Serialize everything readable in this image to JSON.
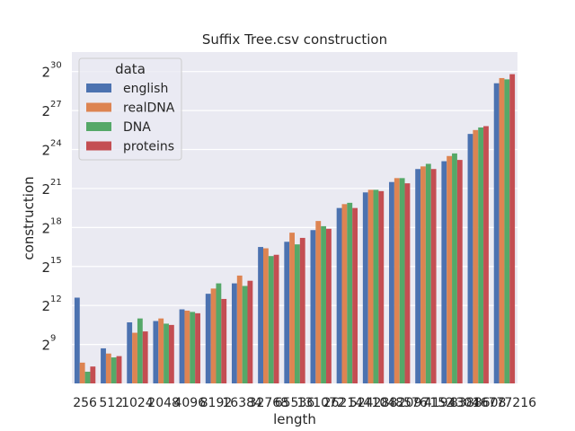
{
  "chart_data": {
    "type": "bar",
    "title": "Suffix Tree.csv construction",
    "xlabel": "length",
    "ylabel": "construction",
    "y_scale": "log2",
    "ylim_log2": [
      6.0,
      31.5
    ],
    "y_ticks": [
      {
        "base": "2",
        "exp": "9",
        "value_log2": 9
      },
      {
        "base": "2",
        "exp": "12",
        "value_log2": 12
      },
      {
        "base": "2",
        "exp": "15",
        "value_log2": 15
      },
      {
        "base": "2",
        "exp": "18",
        "value_log2": 18
      },
      {
        "base": "2",
        "exp": "21",
        "value_log2": 21
      },
      {
        "base": "2",
        "exp": "24",
        "value_log2": 24
      },
      {
        "base": "2",
        "exp": "27",
        "value_log2": 27
      },
      {
        "base": "2",
        "exp": "30",
        "value_log2": 30
      }
    ],
    "categories": [
      "256",
      "512",
      "1024",
      "2048",
      "4096",
      "8192",
      "16384",
      "32768",
      "65536",
      "131072",
      "262144",
      "524288",
      "1048576",
      "2097152",
      "4194304",
      "8388608",
      "16777216"
    ],
    "grid": true,
    "legend": {
      "title": "data",
      "placement": "top-left"
    },
    "series": [
      {
        "name": "english",
        "color": "#4c72b0",
        "values_log2": [
          12.6,
          8.7,
          10.7,
          10.8,
          11.7,
          12.9,
          13.7,
          16.5,
          16.9,
          17.8,
          19.5,
          20.7,
          21.5,
          22.5,
          23.1,
          25.2,
          29.1
        ]
      },
      {
        "name": "realDNA",
        "color": "#dd8452",
        "values_log2": [
          7.6,
          8.3,
          9.9,
          11.0,
          11.6,
          13.3,
          14.3,
          16.4,
          17.6,
          18.5,
          19.8,
          20.9,
          21.8,
          22.7,
          23.5,
          25.5,
          29.5
        ]
      },
      {
        "name": "DNA",
        "color": "#55a868",
        "values_log2": [
          6.9,
          8.0,
          11.0,
          10.6,
          11.5,
          13.7,
          13.5,
          15.8,
          16.7,
          18.1,
          19.9,
          20.9,
          21.8,
          22.9,
          23.7,
          25.7,
          29.4
        ]
      },
      {
        "name": "proteins",
        "color": "#c44e52",
        "values_log2": [
          7.3,
          8.1,
          10.0,
          10.5,
          11.4,
          12.5,
          13.9,
          15.9,
          17.2,
          17.9,
          19.5,
          20.8,
          21.4,
          22.5,
          23.2,
          25.8,
          29.8
        ]
      }
    ]
  }
}
